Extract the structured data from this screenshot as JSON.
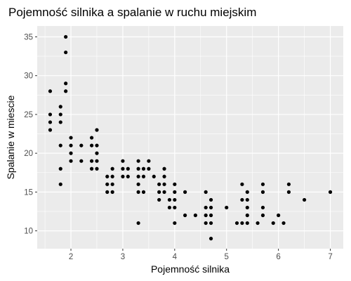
{
  "chart_data": {
    "type": "scatter",
    "title": "Pojemność silnika a spalanie w ruchu miejskim",
    "xlabel": "Pojemność silnika",
    "ylabel": "Spalanie w miescie",
    "xlim": [
      1.35,
      7.25
    ],
    "ylim": [
      7.7,
      36.4
    ],
    "x_ticks": [
      2,
      3,
      4,
      5,
      6,
      7
    ],
    "x_tick_labels": [
      "2",
      "3",
      "4",
      "5",
      "6",
      "7"
    ],
    "y_ticks": [
      10,
      15,
      20,
      25,
      30,
      35
    ],
    "y_tick_labels": [
      "10",
      "15",
      "20",
      "25",
      "30",
      "35"
    ],
    "grid": true,
    "colors": {
      "panel": "#ebebeb",
      "grid": "#ffffff",
      "point": "#000000"
    },
    "points": [
      [
        1.6,
        28
      ],
      [
        1.6,
        25
      ],
      [
        1.6,
        24
      ],
      [
        1.6,
        23
      ],
      [
        1.8,
        26
      ],
      [
        1.8,
        25
      ],
      [
        1.8,
        24
      ],
      [
        1.8,
        21
      ],
      [
        1.8,
        18
      ],
      [
        1.8,
        16
      ],
      [
        1.9,
        35
      ],
      [
        1.9,
        33
      ],
      [
        1.9,
        29
      ],
      [
        1.9,
        28
      ],
      [
        2.0,
        22
      ],
      [
        2.0,
        21
      ],
      [
        2.0,
        20
      ],
      [
        2.0,
        19
      ],
      [
        2.2,
        21
      ],
      [
        2.2,
        19
      ],
      [
        2.4,
        22
      ],
      [
        2.4,
        21
      ],
      [
        2.4,
        19
      ],
      [
        2.4,
        18
      ],
      [
        2.5,
        23
      ],
      [
        2.5,
        21
      ],
      [
        2.5,
        20
      ],
      [
        2.5,
        19
      ],
      [
        2.5,
        18
      ],
      [
        2.7,
        17
      ],
      [
        2.7,
        16
      ],
      [
        2.7,
        15
      ],
      [
        2.8,
        18
      ],
      [
        2.8,
        17
      ],
      [
        2.8,
        16
      ],
      [
        2.8,
        15
      ],
      [
        3.0,
        19
      ],
      [
        3.0,
        18
      ],
      [
        3.0,
        17
      ],
      [
        3.1,
        18
      ],
      [
        3.1,
        17
      ],
      [
        3.3,
        19
      ],
      [
        3.3,
        18
      ],
      [
        3.3,
        17
      ],
      [
        3.3,
        16
      ],
      [
        3.3,
        15
      ],
      [
        3.3,
        11
      ],
      [
        3.4,
        18
      ],
      [
        3.4,
        17
      ],
      [
        3.4,
        15
      ],
      [
        3.5,
        19
      ],
      [
        3.5,
        18
      ],
      [
        3.6,
        17
      ],
      [
        3.7,
        16
      ],
      [
        3.7,
        15
      ],
      [
        3.7,
        14
      ],
      [
        3.8,
        18
      ],
      [
        3.8,
        17
      ],
      [
        3.8,
        16
      ],
      [
        3.8,
        15
      ],
      [
        3.9,
        14
      ],
      [
        3.9,
        13
      ],
      [
        4.0,
        16
      ],
      [
        4.0,
        15
      ],
      [
        4.0,
        14
      ],
      [
        4.0,
        13
      ],
      [
        4.0,
        11
      ],
      [
        4.2,
        15
      ],
      [
        4.2,
        12
      ],
      [
        4.4,
        12
      ],
      [
        4.6,
        15
      ],
      [
        4.6,
        13
      ],
      [
        4.6,
        12
      ],
      [
        4.6,
        11
      ],
      [
        4.7,
        14
      ],
      [
        4.7,
        13
      ],
      [
        4.7,
        12
      ],
      [
        4.7,
        11
      ],
      [
        4.7,
        9
      ],
      [
        5.0,
        13
      ],
      [
        5.2,
        11
      ],
      [
        5.3,
        16
      ],
      [
        5.3,
        14
      ],
      [
        5.3,
        11
      ],
      [
        5.4,
        15
      ],
      [
        5.4,
        14
      ],
      [
        5.4,
        13
      ],
      [
        5.4,
        12
      ],
      [
        5.4,
        11
      ],
      [
        5.6,
        11
      ],
      [
        5.7,
        16
      ],
      [
        5.7,
        15
      ],
      [
        5.7,
        13
      ],
      [
        5.7,
        12
      ],
      [
        5.9,
        11
      ],
      [
        6.0,
        12
      ],
      [
        6.1,
        11
      ],
      [
        6.2,
        16
      ],
      [
        6.2,
        15
      ],
      [
        6.5,
        14
      ],
      [
        7.0,
        15
      ]
    ]
  }
}
